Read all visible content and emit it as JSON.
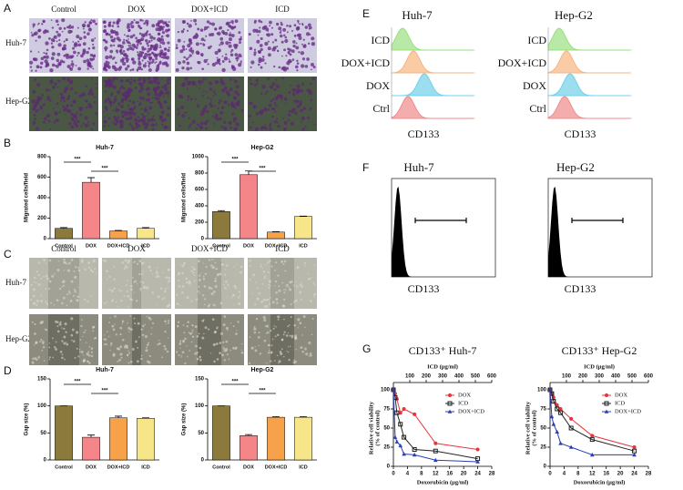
{
  "panel_labels": [
    "A",
    "B",
    "C",
    "D",
    "E",
    "F",
    "G"
  ],
  "migration": {
    "columns": [
      "Control",
      "DOX",
      "DOX+ICD",
      "ICD"
    ],
    "rows": [
      "Huh-7",
      "Hep-G2"
    ]
  },
  "wound": {
    "columns": [
      "Control",
      "DOX",
      "DOX+ICD",
      "ICD"
    ],
    "rows": [
      "Huh-7",
      "Hep-G2"
    ]
  },
  "flow_E": {
    "titles": [
      "Huh-7",
      "Hep-G2"
    ],
    "labels": [
      "ICD",
      "DOX+ICD",
      "DOX",
      "Ctrl"
    ],
    "x_label": "CD133"
  },
  "flow_F": {
    "titles": [
      "Huh-7",
      "Hep-G2"
    ],
    "x_label": "CD133"
  },
  "chart_data": [
    {
      "type": "bar",
      "title": "Huh-7",
      "y_label": "Migrated cells/field",
      "categories": [
        "Control",
        "DOX",
        "DOX+ICD",
        "ICD"
      ],
      "values": [
        100,
        550,
        75,
        100
      ],
      "errors": [
        8,
        45,
        5,
        8
      ],
      "colors": [
        "#8c7a3c",
        "#f4868a",
        "#f7a24a",
        "#f7e58a"
      ],
      "ylim": [
        0,
        800
      ],
      "yticks": [
        0,
        200,
        400,
        600,
        800
      ],
      "annotations": [
        "***",
        "***"
      ]
    },
    {
      "type": "bar",
      "title": "Hep-G2",
      "y_label": "Migrated cells/field",
      "categories": [
        "Control",
        "DOX",
        "DOX+ICD",
        "ICD"
      ],
      "values": [
        330,
        780,
        80,
        270
      ],
      "errors": [
        12,
        45,
        5,
        5
      ],
      "colors": [
        "#8c7a3c",
        "#f4868a",
        "#f7a24a",
        "#f7e58a"
      ],
      "ylim": [
        0,
        1000
      ],
      "yticks": [
        0,
        200,
        400,
        600,
        800,
        1000
      ],
      "annotations": [
        "***",
        "***"
      ]
    },
    {
      "type": "bar",
      "title": "Huh-7",
      "y_label": "Gap size (%)",
      "categories": [
        "Control",
        "DOX",
        "DOX+ICD",
        "ICD"
      ],
      "values": [
        100,
        42,
        78,
        77
      ],
      "errors": [
        0,
        4,
        3,
        1
      ],
      "colors": [
        "#8c7a3c",
        "#f4868a",
        "#f7a24a",
        "#f7e58a"
      ],
      "ylim": [
        0,
        150
      ],
      "yticks": [
        0,
        50,
        100,
        150
      ],
      "annotations": [
        "***",
        "***"
      ]
    },
    {
      "type": "bar",
      "title": "Hep-G2",
      "y_label": "Gap size (%)",
      "categories": [
        "Control",
        "DOX",
        "DOX+ICD",
        "ICD"
      ],
      "values": [
        100,
        45,
        79,
        79
      ],
      "errors": [
        0,
        2,
        1,
        1
      ],
      "colors": [
        "#8c7a3c",
        "#f4868a",
        "#f7a24a",
        "#f7e58a"
      ],
      "ylim": [
        0,
        150
      ],
      "yticks": [
        0,
        50,
        100,
        150
      ],
      "annotations": [
        "***",
        "***"
      ]
    },
    {
      "type": "line",
      "title": "CD133⁺ Huh-7",
      "x_label": "Doxorubicin (μg/ml)",
      "x2_label": "ICD (μg/ml)",
      "y_label": [
        "Relative cell viability",
        "(% of control)"
      ],
      "x": [
        0,
        0.5,
        1,
        2,
        3,
        6,
        12,
        24
      ],
      "xlim": [
        0,
        28
      ],
      "xticks": [
        0,
        4,
        8,
        12,
        16,
        20,
        24,
        28
      ],
      "x2lim": [
        0,
        600
      ],
      "x2ticks": [
        100,
        200,
        300,
        400,
        500,
        600
      ],
      "ylim": [
        0,
        100
      ],
      "yticks": [
        0,
        25,
        50,
        75,
        100
      ],
      "legend": "upper right",
      "series": [
        {
          "name": "DOX",
          "color": "#e8333a",
          "marker": "circle",
          "values": [
            100,
            95,
            88,
            70,
            75,
            68,
            30,
            22
          ]
        },
        {
          "name": "ICD",
          "color": "#222222",
          "marker": "square",
          "values": [
            100,
            90,
            70,
            55,
            38,
            22,
            20,
            10
          ]
        },
        {
          "name": "DOX+ICD",
          "color": "#2a3fb0",
          "marker": "triangle",
          "values": [
            100,
            38,
            32,
            27,
            16,
            15,
            8,
            6
          ]
        }
      ]
    },
    {
      "type": "line",
      "title": "CD133⁺ Hep-G2",
      "x_label": "Doxorubicin (μg/ml)",
      "x2_label": "ICD (μg/ml)",
      "y_label": [
        "Relative cell viability",
        "(% of control)"
      ],
      "x": [
        0,
        0.5,
        1,
        2,
        3,
        6,
        12,
        24
      ],
      "xlim": [
        0,
        28
      ],
      "xticks": [
        0,
        4,
        8,
        12,
        16,
        20,
        24,
        28
      ],
      "x2lim": [
        0,
        600
      ],
      "x2ticks": [
        100,
        200,
        300,
        400,
        500,
        600
      ],
      "ylim": [
        0,
        100
      ],
      "yticks": [
        0,
        25,
        50,
        75,
        100
      ],
      "legend": "upper right",
      "series": [
        {
          "name": "DOX",
          "color": "#e8333a",
          "marker": "circle",
          "values": [
            100,
            95,
            90,
            80,
            75,
            62,
            40,
            25
          ]
        },
        {
          "name": "ICD",
          "color": "#222222",
          "marker": "square",
          "values": [
            100,
            95,
            85,
            75,
            70,
            50,
            35,
            20
          ]
        },
        {
          "name": "DOX+ICD",
          "color": "#2a3fb0",
          "marker": "triangle",
          "values": [
            100,
            65,
            55,
            45,
            30,
            25,
            15,
            15
          ]
        }
      ]
    }
  ]
}
